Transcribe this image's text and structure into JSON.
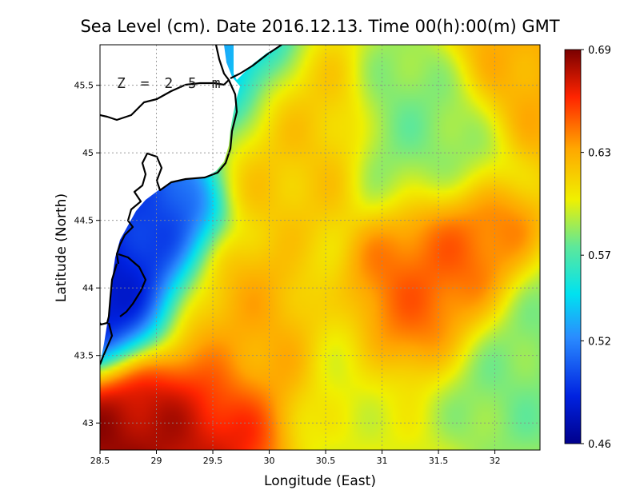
{
  "chart_data": {
    "type": "heatmap",
    "title": "Sea Level (cm). Date 2016.12.13. Time 00(h):00(m) GMT",
    "xlabel": "Longitude (East)",
    "ylabel": "Latitude (North)",
    "annotation": "Z = 2.5 m",
    "xlim": [
      28.5,
      32.4
    ],
    "ylim": [
      42.8,
      45.8
    ],
    "x_ticks": [
      "28.5",
      "29",
      "29.5",
      "30",
      "30.5",
      "31",
      "31.5",
      "32"
    ],
    "y_ticks": [
      "43",
      "43.5",
      "44",
      "44.5",
      "45",
      "45.5"
    ],
    "grid": true,
    "colorbar": {
      "ticks": [
        "0.46",
        "0.52",
        "0.57",
        "0.63",
        "0.69"
      ],
      "range": [
        0.46,
        0.69
      ]
    },
    "features": [
      {
        "lon": 28.9,
        "lat": 42.9,
        "value": 0.69
      },
      {
        "lon": 29.2,
        "lat": 43.0,
        "value": 0.67
      },
      {
        "lon": 29.5,
        "lat": 43.7,
        "value": 0.63
      },
      {
        "lon": 31.6,
        "lat": 44.2,
        "value": 0.65
      },
      {
        "lon": 30.2,
        "lat": 45.1,
        "value": 0.62
      },
      {
        "lon": 32.3,
        "lat": 45.7,
        "value": 0.63
      },
      {
        "lon": 28.7,
        "lat": 44.0,
        "value": 0.47
      },
      {
        "lon": 28.8,
        "lat": 44.5,
        "value": 0.5
      },
      {
        "lon": 29.5,
        "lat": 45.7,
        "value": 0.53
      },
      {
        "lon": 31.4,
        "lat": 45.1,
        "value": 0.58
      },
      {
        "lon": 32.3,
        "lat": 43.5,
        "value": 0.58
      }
    ],
    "background_value": 0.6
  }
}
